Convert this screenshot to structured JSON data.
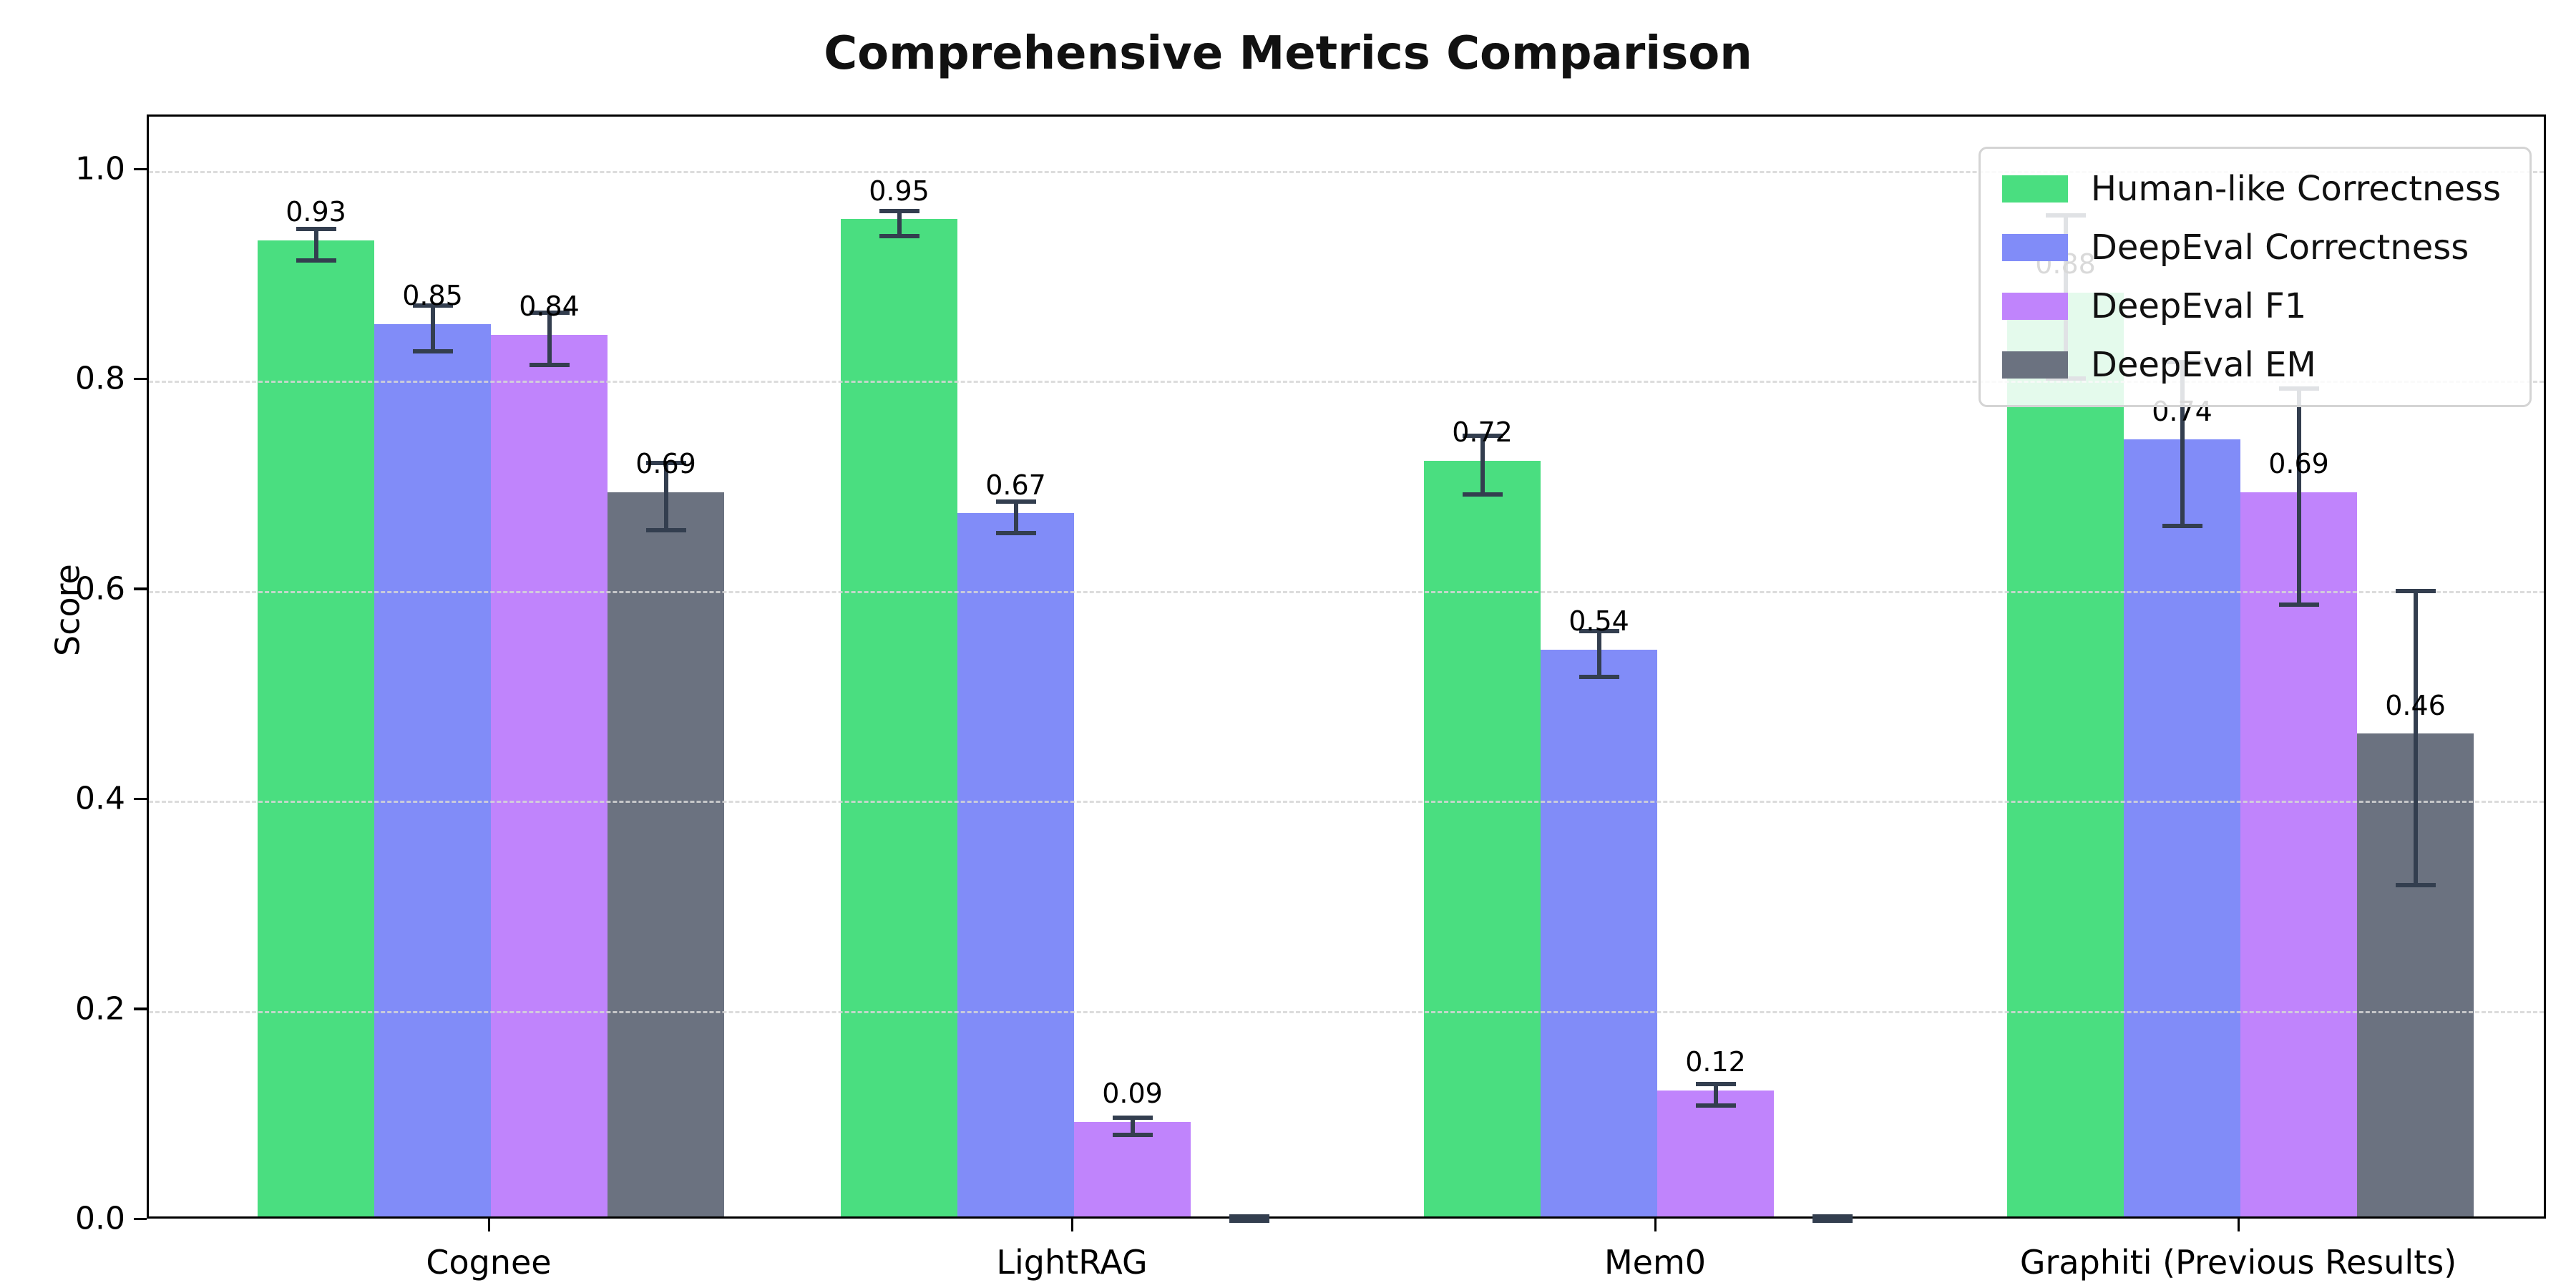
{
  "chart_data": {
    "type": "bar",
    "title": "Comprehensive Metrics Comparison",
    "xlabel": "",
    "ylabel": "Score",
    "categories": [
      "Cognee",
      "LightRAG",
      "Mem0",
      "Graphiti (Previous Results)"
    ],
    "series": [
      {
        "name": "Human-like Correctness",
        "color": "#4ade80",
        "values": [
          0.93,
          0.95,
          0.72,
          0.88
        ],
        "errors": [
          0.015,
          0.012,
          0.028,
          0.078
        ],
        "labels": [
          "0.93",
          "0.95",
          "0.72",
          "0.88"
        ]
      },
      {
        "name": "DeepEval Correctness",
        "color": "#818cf8",
        "values": [
          0.85,
          0.67,
          0.54,
          0.74
        ],
        "errors": [
          0.022,
          0.015,
          0.022,
          0.078
        ],
        "labels": [
          "0.85",
          "0.67",
          "0.54",
          "0.74"
        ]
      },
      {
        "name": "DeepEval F1",
        "color": "#c084fc",
        "values": [
          0.84,
          0.09,
          0.12,
          0.69
        ],
        "errors": [
          0.025,
          0.008,
          0.01,
          0.103
        ],
        "labels": [
          "0.84",
          "0.09",
          "0.12",
          "0.69"
        ]
      },
      {
        "name": "DeepEval EM",
        "color": "#6b7280",
        "values": [
          0.69,
          0.0,
          0.0,
          0.46
        ],
        "errors": [
          0.032,
          0.004,
          0.004,
          0.14
        ],
        "labels": [
          "0.69",
          "",
          "",
          "0.46"
        ]
      }
    ],
    "ylim": [
      0,
      1.05
    ],
    "yticks": [
      "0.0",
      "0.2",
      "0.4",
      "0.6",
      "0.8",
      "1.0"
    ],
    "grid": "dashed horizontal, drawn above bars",
    "legend_position": "upper right",
    "errorbar_color": "#333e4f"
  }
}
